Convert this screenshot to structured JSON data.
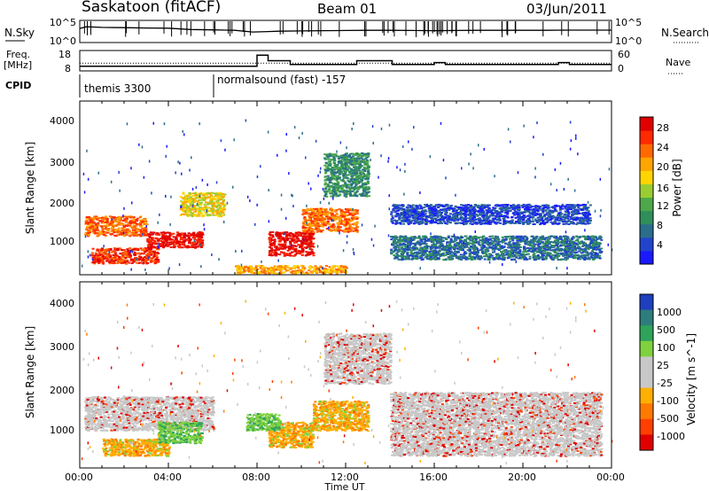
{
  "header": {
    "title": "Saskatoon (fitACF)",
    "beam": "Beam 01",
    "date": "03/Jun/2011"
  },
  "noise_panel": {
    "left_label": "N.Sky",
    "left_top_tick": "10^5",
    "left_bottom_tick": "10^0",
    "right_label": "N.Search",
    "right_top_tick": "10^5",
    "right_bottom_tick": "10^0"
  },
  "freq_panel": {
    "left_label_line1": "Freq.",
    "left_label_line2": "[MHz]",
    "left_top_tick": "18",
    "left_bottom_tick": "8",
    "right_label": "Nave",
    "right_top_tick": "60",
    "right_bottom_tick": "0"
  },
  "cpid_panel": {
    "label": "CPID",
    "programs": [
      "themis 3300",
      "normalsound (fast) -157"
    ]
  },
  "power_panel": {
    "ylabel": "Slant Range [km]",
    "yticks": [
      "4000",
      "3000",
      "2000",
      "1000"
    ],
    "colorbar_label": "Power [dB]",
    "colorbar_ticks": [
      "28",
      "24",
      "20",
      "16",
      "12",
      "8",
      "4"
    ],
    "colors": [
      "#1a1aff",
      "#2244cc",
      "#2a6e8c",
      "#2f8f5a",
      "#4ea84a",
      "#9acd32",
      "#ffd400",
      "#ffa500",
      "#ff6a00",
      "#ff2a00",
      "#e00000"
    ]
  },
  "velocity_panel": {
    "ylabel": "Slant Range [km]",
    "yticks": [
      "4000",
      "3000",
      "2000",
      "1000"
    ],
    "colorbar_label": "Velocity [m s^-1]",
    "colorbar_ticks": [
      "1000",
      "500",
      "100",
      "25",
      "-25",
      "-100",
      "-500",
      "-1000"
    ],
    "colors": [
      "#1f3fbf",
      "#2e7d7d",
      "#2fa35a",
      "#7fd13f",
      "#c8c8c8",
      "#c8c8c8",
      "#ffb000",
      "#ff7a00",
      "#ff4000",
      "#e00000"
    ]
  },
  "xaxis": {
    "label": "Time UT",
    "ticks": [
      "00:00",
      "04:00",
      "08:00",
      "12:00",
      "16:00",
      "20:00",
      "00:00"
    ]
  },
  "chart_data": [
    {
      "type": "line",
      "title": "N.Sky / N.Search",
      "x_unit": "hours UT",
      "ylim": [
        1,
        100000
      ],
      "yscale": "log",
      "series": [
        {
          "name": "N.Sky",
          "x": [
            0,
            0.3,
            1,
            2,
            3,
            4,
            5,
            6,
            7,
            7.8,
            8.5,
            9,
            10,
            11,
            12,
            13,
            14,
            15,
            16,
            17,
            18,
            19,
            20,
            21,
            22,
            23,
            24
          ],
          "y": [
            3000,
            9000,
            6000,
            5000,
            4000,
            3500,
            1500,
            1200,
            900,
            300,
            400,
            500,
            600,
            700,
            800,
            900,
            900,
            800,
            700,
            800,
            900,
            900,
            900,
            900,
            1000,
            1000,
            1000
          ]
        }
      ]
    },
    {
      "type": "line",
      "title": "Freq. / Nave",
      "x_unit": "hours UT",
      "series": [
        {
          "name": "Freq. [MHz]",
          "ylim": [
            8,
            18
          ],
          "x": [
            0,
            8,
            8,
            8.5,
            8.5,
            9.5,
            9.5,
            12.5,
            12.5,
            14.1,
            14.1,
            16,
            16,
            16.5,
            16.5,
            21.6,
            21.6,
            22.1,
            22.1,
            24
          ],
          "y": [
            10,
            10,
            16,
            16,
            13,
            13,
            11,
            11,
            13,
            13,
            11,
            11,
            12,
            12,
            11,
            11,
            12,
            12,
            11,
            11
          ]
        },
        {
          "name": "Nave",
          "ylim": [
            0,
            60
          ],
          "dotted": true,
          "x": [
            0,
            24
          ],
          "y": [
            22,
            22
          ]
        }
      ]
    },
    {
      "type": "heatmap",
      "title": "Power [dB]",
      "x_unit": "hours UT",
      "y_unit": "km",
      "xlim": [
        0,
        24
      ],
      "ylim": [
        200,
        4600
      ],
      "color_levels_db": [
        4,
        8,
        12,
        16,
        20,
        24,
        28
      ],
      "bands": [
        {
          "x0": 0.2,
          "x1": 3.0,
          "y0": 1200,
          "y1": 1700,
          "db": 22
        },
        {
          "x0": 0.5,
          "x1": 3.5,
          "y0": 500,
          "y1": 900,
          "db": 25
        },
        {
          "x0": 3.0,
          "x1": 5.5,
          "y0": 900,
          "y1": 1300,
          "db": 27
        },
        {
          "x0": 4.5,
          "x1": 6.5,
          "y0": 1700,
          "y1": 2300,
          "db": 18
        },
        {
          "x0": 8.5,
          "x1": 10.5,
          "y0": 700,
          "y1": 1300,
          "db": 28
        },
        {
          "x0": 10.0,
          "x1": 12.5,
          "y0": 1300,
          "y1": 1900,
          "db": 24
        },
        {
          "x0": 11.0,
          "x1": 13.0,
          "y0": 2200,
          "y1": 3300,
          "db": 10
        },
        {
          "x0": 14.0,
          "x1": 23.5,
          "y0": 600,
          "y1": 1200,
          "db": 8
        },
        {
          "x0": 14.0,
          "x1": 23.0,
          "y0": 1500,
          "y1": 2000,
          "db": 7
        },
        {
          "x0": 7.0,
          "x1": 12.0,
          "y0": 250,
          "y1": 450,
          "db": 20
        }
      ]
    },
    {
      "type": "heatmap",
      "title": "Velocity [m s-1]",
      "x_unit": "hours UT",
      "y_unit": "km",
      "xlim": [
        0,
        24
      ],
      "ylim": [
        200,
        4600
      ],
      "color_levels": [
        1000,
        500,
        100,
        25,
        -25,
        -100,
        -500,
        -1000
      ],
      "bands": [
        {
          "x0": 0.2,
          "x1": 6.0,
          "y0": 1100,
          "y1": 1900,
          "v": 0
        },
        {
          "x0": 1.0,
          "x1": 4.0,
          "y0": 500,
          "y1": 900,
          "v": -300
        },
        {
          "x0": 3.5,
          "x1": 5.5,
          "y0": 800,
          "y1": 1300,
          "v": 150
        },
        {
          "x0": 8.5,
          "x1": 10.5,
          "y0": 700,
          "y1": 1300,
          "v": -300
        },
        {
          "x0": 10.5,
          "x1": 13.0,
          "y0": 1100,
          "y1": 1800,
          "v": -200
        },
        {
          "x0": 7.5,
          "x1": 9.0,
          "y0": 1100,
          "y1": 1500,
          "v": 300
        },
        {
          "x0": 11.0,
          "x1": 14.0,
          "y0": 2200,
          "y1": 3400,
          "v": 0
        },
        {
          "x0": 14.0,
          "x1": 23.5,
          "y0": 500,
          "y1": 2000,
          "v": 0
        }
      ]
    }
  ]
}
